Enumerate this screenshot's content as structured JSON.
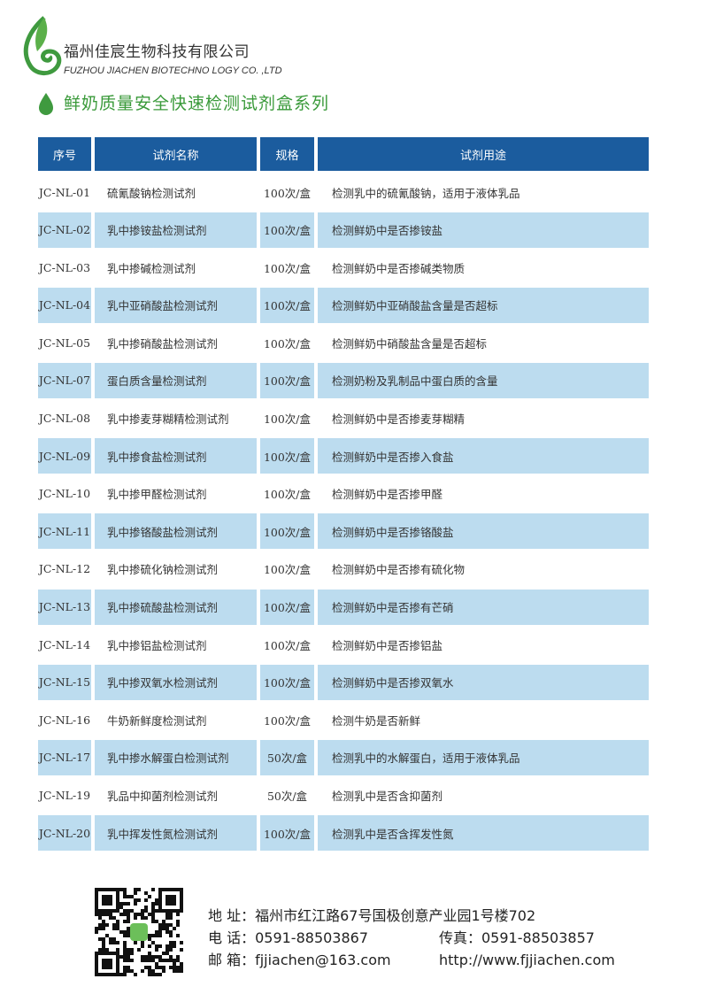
{
  "company": {
    "name_cn": "福州佳宸生物科技有限公司",
    "name_en": "FUZHOU JIACHEN BIOTECHNO LOGY CO. ,LTD",
    "brand_color": "#3a9a3a"
  },
  "series_title": "鲜奶质量安全快速检测试剂盒系列",
  "table": {
    "header_color": "#1b5c9e",
    "shade_color": "#bcdcef",
    "headers": [
      "序号",
      "试剂名称",
      "规格",
      "试剂用途"
    ],
    "rows": [
      [
        "JC-NL-01",
        "硫氰酸钠检测试剂",
        "100次/盒",
        "检测乳中的硫氰酸钠，适用于液体乳品"
      ],
      [
        "JC-NL-02",
        "乳中掺铵盐检测试剂",
        "100次/盒",
        "检测鲜奶中是否掺铵盐"
      ],
      [
        "JC-NL-03",
        "乳中掺碱检测试剂",
        "100次/盒",
        "检测鲜奶中是否掺碱类物质"
      ],
      [
        "JC-NL-04",
        "乳中亚硝酸盐检测试剂",
        "100次/盒",
        "检测鲜奶中亚硝酸盐含量是否超标"
      ],
      [
        "JC-NL-05",
        "乳中掺硝酸盐检测试剂",
        "100次/盒",
        "检测鲜奶中硝酸盐含量是否超标"
      ],
      [
        "JC-NL-07",
        "蛋白质含量检测试剂",
        "100次/盒",
        "检测奶粉及乳制品中蛋白质的含量"
      ],
      [
        "JC-NL-08",
        "乳中掺麦芽糊精检测试剂",
        "100次/盒",
        "检测鲜奶中是否掺麦芽糊精"
      ],
      [
        "JC-NL-09",
        "乳中掺食盐检测试剂",
        "100次/盒",
        "检测鲜奶中是否掺入食盐"
      ],
      [
        "JC-NL-10",
        "乳中掺甲醛检测试剂",
        "100次/盒",
        "检测鲜奶中是否掺甲醛"
      ],
      [
        "JC-NL-11",
        "乳中掺铬酸盐检测试剂",
        "100次/盒",
        "检测鲜奶中是否掺铬酸盐"
      ],
      [
        "JC-NL-12",
        "乳中掺硫化钠检测试剂",
        "100次/盒",
        "检测鲜奶中是否掺有硫化物"
      ],
      [
        "JC-NL-13",
        "乳中掺硫酸盐检测试剂",
        "100次/盒",
        "检测鲜奶中是否掺有芒硝"
      ],
      [
        "JC-NL-14",
        "乳中掺铝盐检测试剂",
        "100次/盒",
        "检测鲜奶中是否掺铝盐"
      ],
      [
        "JC-NL-15",
        "乳中掺双氧水检测试剂",
        "100次/盒",
        "检测鲜奶中是否掺双氧水"
      ],
      [
        "JC-NL-16",
        "牛奶新鲜度检测试剂",
        "100次/盒",
        "检测牛奶是否新鲜"
      ],
      [
        "JC-NL-17",
        "乳中掺水解蛋白检测试剂",
        "50次/盒",
        "检测乳中的水解蛋白，适用于液体乳品"
      ],
      [
        "JC-NL-19",
        "乳品中抑菌剂检测试剂",
        "50次/盒",
        "检测乳中是否含抑菌剂"
      ],
      [
        "JC-NL-20",
        "乳中挥发性氮检测试剂",
        "100次/盒",
        "检测乳中是否含挥发性氮"
      ]
    ]
  },
  "contact": {
    "address": "地 址：福州市红江路67号国极创意产业园1号楼702",
    "phone": "电 话：0591-88503867",
    "fax": "传真：0591-88503857",
    "email": "邮 箱：fjjiachen@163.com",
    "website": "http://www.fjjiachen.com"
  }
}
